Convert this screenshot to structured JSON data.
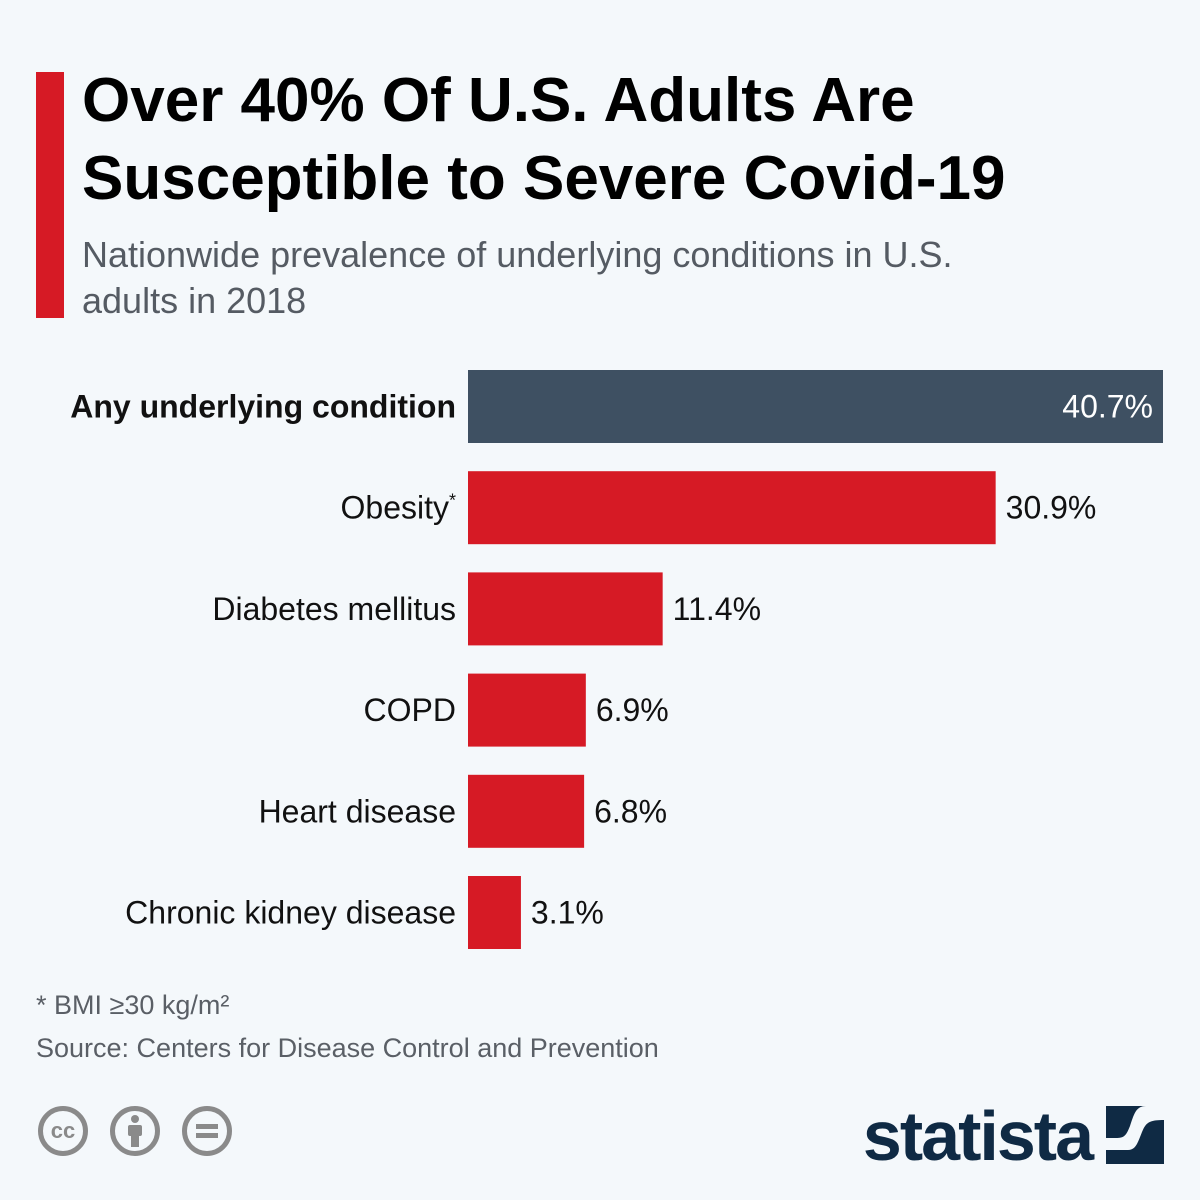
{
  "title": "Over 40% Of U.S. Adults Are Susceptible to Severe Covid-19",
  "subtitle": "Nationwide prevalence of underlying conditions in U.S. adults in 2018",
  "chart_data": {
    "type": "bar",
    "orientation": "horizontal",
    "categories": [
      "Any underlying condition",
      "Obesity*",
      "Diabetes mellitus",
      "COPD",
      "Heart disease",
      "Chronic kidney disease"
    ],
    "values": [
      40.7,
      30.9,
      11.4,
      6.9,
      6.8,
      3.1
    ],
    "data_labels": [
      "40.7%",
      "30.9%",
      "11.4%",
      "6.9%",
      "6.8%",
      "3.1%"
    ],
    "unit": "%",
    "colors": {
      "highlight": "#3e5062",
      "default": "#d61a25"
    },
    "grid": false,
    "xlim": [
      0,
      40.7
    ]
  },
  "footnote": "* BMI ≥30 kg/m²",
  "source": "Source: Centers for Disease Control and Prevention",
  "license_icons": [
    "cc-icon",
    "attribution-icon",
    "no-derivatives-icon"
  ],
  "brand": "statista"
}
